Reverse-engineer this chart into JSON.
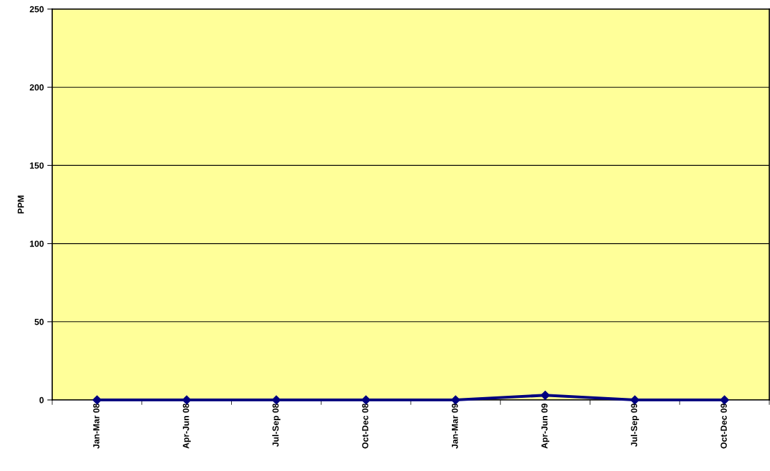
{
  "chart_data": {
    "type": "line",
    "ylabel": "PPM",
    "categories": [
      "Jan-Mar 08",
      "Apr-Jun 08",
      "Jul-Sep 08",
      "Oct-Dec 08",
      "Jan-Mar 09",
      "Apr-Jun 09",
      "Jul-Sep 09",
      "Oct-Dec 09"
    ],
    "series": [
      {
        "color": "#000080",
        "values": [
          0,
          0,
          0,
          0,
          0,
          3,
          0,
          0
        ]
      }
    ],
    "ylim": [
      0,
      250
    ],
    "yticks": [
      0,
      50,
      100,
      150,
      200,
      250
    ],
    "grid": "y",
    "marker": "diamond",
    "line_style": "solid",
    "legend": false
  }
}
